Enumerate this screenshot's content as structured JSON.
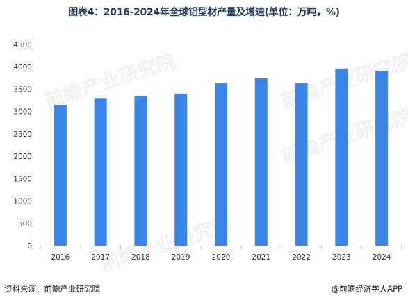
{
  "title": "图表4：2016-2024年全球铝型材产量及增速(单位：万吨，%)",
  "watermark": "前瞻产业研究院",
  "footer": {
    "source": "资料来源：前瞻产业研究院",
    "brand": "@前瞻经济学人APP"
  },
  "chart_data": {
    "type": "bar",
    "title": "图表4：2016-2024年全球铝型材产量及增速(单位：万吨，%)",
    "categories": [
      "2016",
      "2017",
      "2018",
      "2019",
      "2020",
      "2021",
      "2022",
      "2023",
      "2024"
    ],
    "values": [
      3150,
      3300,
      3350,
      3400,
      3630,
      3740,
      3630,
      3960,
      3910
    ],
    "ylim": [
      0,
      4500
    ],
    "yticks": [
      0,
      500,
      1000,
      1500,
      2000,
      2500,
      3000,
      3500,
      4000,
      4500
    ],
    "xlabel": "",
    "ylabel": "",
    "grid": false,
    "bar_color": "#3a86e8",
    "axis_color": "#bfbfbf"
  }
}
